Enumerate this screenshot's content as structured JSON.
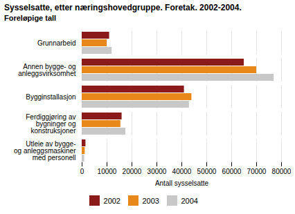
{
  "chart_data": {
    "type": "bar",
    "orientation": "horizontal",
    "title": "Sysselsatte, etter næringshovedgruppe. Foretak. 2002-2004.",
    "subtitle": "Foreløpige tall",
    "categories": [
      "Grunnarbeid",
      "Annen bygge- og\nanleggsvirksomhet",
      "Bygginstallasjon",
      "Ferdiggjøring av\nbygninger og\nkonstruksjoner",
      "Utleie av bygge-\nog anleggsmaskiner\nmed personell"
    ],
    "series": [
      {
        "name": "2002",
        "color": "#8B1A1A",
        "values": [
          11000,
          65000,
          41000,
          16000,
          1500
        ]
      },
      {
        "name": "2003",
        "color": "#E8871A",
        "values": [
          10000,
          70000,
          44000,
          15500,
          1200
        ]
      },
      {
        "name": "2004",
        "color": "#C8C8C8",
        "values": [
          12000,
          77000,
          43000,
          17500,
          1000
        ]
      }
    ],
    "xlabel": "Antall sysselsatte",
    "xlim": [
      0,
      80000
    ],
    "xticks": [
      0,
      10000,
      20000,
      30000,
      40000,
      50000,
      60000,
      70000,
      80000
    ],
    "grid": true,
    "legend": "bottom"
  }
}
